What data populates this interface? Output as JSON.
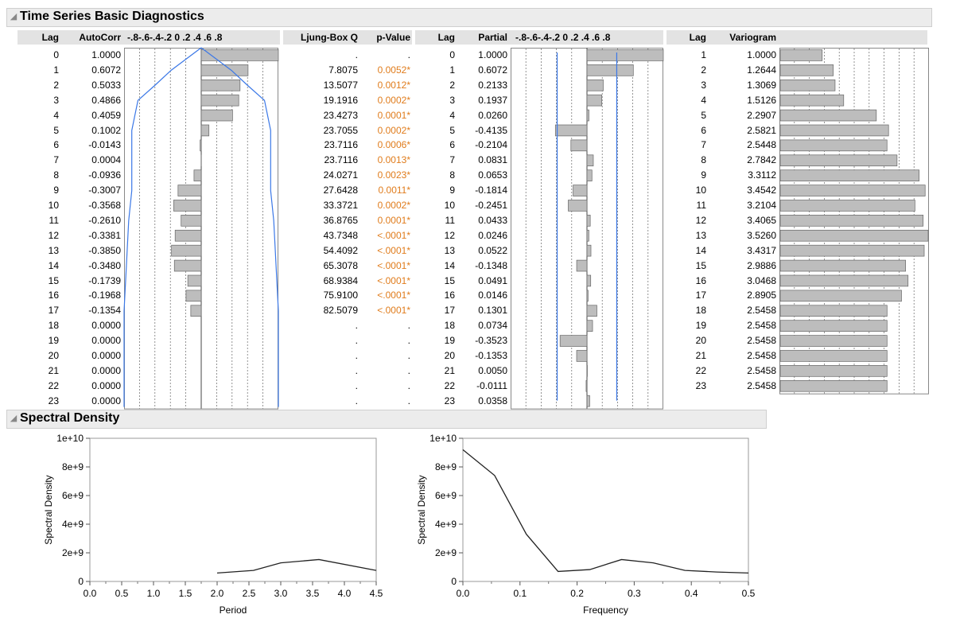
{
  "diagnostics": {
    "title": "Time Series Basic Diagnostics",
    "headers": {
      "lag": "Lag",
      "autocorr": "AutoCorr",
      "scale": "-.8-.6-.4-.2 0 .2 .4 .6 .8",
      "ljung": "Ljung-Box Q",
      "pvalue": "p-Value",
      "lag2": "Lag",
      "partial": "Partial",
      "lag3": "Lag",
      "variogram": "Variogram"
    },
    "lags": [
      "0",
      "1",
      "2",
      "3",
      "4",
      "5",
      "6",
      "7",
      "8",
      "9",
      "10",
      "11",
      "12",
      "13",
      "14",
      "15",
      "16",
      "17",
      "18",
      "19",
      "20",
      "21",
      "22",
      "23"
    ],
    "autocorr": [
      "1.0000",
      "0.6072",
      "0.5033",
      "0.4866",
      "0.4059",
      "0.1002",
      "-0.0143",
      "0.0004",
      "-0.0936",
      "-0.3007",
      "-0.3568",
      "-0.2610",
      "-0.3381",
      "-0.3850",
      "-0.3480",
      "-0.1739",
      "-0.1968",
      "-0.1354",
      "0.0000",
      "0.0000",
      "0.0000",
      "0.0000",
      "0.0000",
      "0.0000"
    ],
    "ljung_q": [
      ".",
      "7.8075",
      "13.5077",
      "19.1916",
      "23.4273",
      "23.7055",
      "23.7116",
      "23.7116",
      "24.0271",
      "27.6428",
      "33.3721",
      "36.8765",
      "43.7348",
      "54.4092",
      "65.3078",
      "68.9384",
      "75.9100",
      "82.5079",
      ".",
      ".",
      ".",
      ".",
      ".",
      "."
    ],
    "p_values": [
      ".",
      "0.0052*",
      "0.0012*",
      "0.0002*",
      "0.0001*",
      "0.0002*",
      "0.0006*",
      "0.0013*",
      "0.0023*",
      "0.0011*",
      "0.0002*",
      "0.0001*",
      "<.0001*",
      "<.0001*",
      "<.0001*",
      "<.0001*",
      "<.0001*",
      "<.0001*",
      ".",
      ".",
      ".",
      ".",
      ".",
      "."
    ],
    "partial": [
      "1.0000",
      "0.6072",
      "0.2133",
      "0.1937",
      "0.0260",
      "-0.4135",
      "-0.2104",
      "0.0831",
      "0.0653",
      "-0.1814",
      "-0.2451",
      "0.0433",
      "0.0246",
      "0.0522",
      "-0.1348",
      "0.0491",
      "0.0146",
      "0.1301",
      "0.0734",
      "-0.3523",
      "-0.1353",
      "0.0050",
      "-0.0111",
      "0.0358"
    ],
    "var_lags": [
      "1",
      "2",
      "3",
      "4",
      "5",
      "6",
      "7",
      "8",
      "9",
      "10",
      "11",
      "12",
      "13",
      "14",
      "15",
      "16",
      "17",
      "18",
      "19",
      "20",
      "21",
      "22",
      "23"
    ],
    "variogram": [
      "1.0000",
      "1.2644",
      "1.3069",
      "1.5126",
      "2.2907",
      "2.5821",
      "2.5448",
      "2.7842",
      "3.3112",
      "3.4542",
      "3.2104",
      "3.4065",
      "3.5260",
      "3.4317",
      "2.9886",
      "3.0468",
      "2.8905",
      "2.5458",
      "2.5458",
      "2.5458",
      "2.5458",
      "2.5458",
      "2.5458"
    ],
    "acf_limits": [
      0,
      0.39,
      0.6,
      0.82,
      0.86,
      0.9,
      0.9,
      0.9,
      0.9,
      0.9,
      0.92,
      0.94,
      0.95,
      0.96,
      0.97,
      0.98,
      0.99,
      1.0,
      1.0,
      1.0,
      1.0,
      1.0,
      1.0,
      1.0
    ],
    "pacf_limit": 0.39,
    "colors": {
      "bar": "#bdbdbd",
      "limit": "#3b78e7",
      "significant": "#e07c1c"
    }
  },
  "spectral": {
    "title": "Spectral Density"
  },
  "chart_data": [
    {
      "type": "line",
      "title": "",
      "xlabel": "Period",
      "ylabel": "Spectral Density",
      "xlim": [
        0,
        4.5
      ],
      "ylim": [
        0,
        10000000000
      ],
      "xticks": [
        "0.0",
        "0.5",
        "1.0",
        "1.5",
        "2.0",
        "2.5",
        "3.0",
        "3.5",
        "4.0",
        "4.5"
      ],
      "yticks": [
        "0",
        "2e+9",
        "4e+9",
        "6e+9",
        "8e+9",
        "1e+10"
      ],
      "x": [
        2.0,
        2.571,
        3.0,
        3.6,
        4.5
      ],
      "y": [
        590000000,
        770000000,
        1300000000,
        1530000000,
        770000000
      ]
    },
    {
      "type": "line",
      "title": "",
      "xlabel": "Frequency",
      "ylabel": "Spectral Density",
      "xlim": [
        0,
        0.5
      ],
      "ylim": [
        0,
        10000000000
      ],
      "xticks": [
        "0.0",
        "0.1",
        "0.2",
        "0.3",
        "0.4",
        "0.5"
      ],
      "yticks": [
        "0",
        "2e+9",
        "4e+9",
        "6e+9",
        "8e+9",
        "1e+10"
      ],
      "x": [
        0.0,
        0.0556,
        0.1111,
        0.1667,
        0.2222,
        0.2778,
        0.3333,
        0.3889,
        0.4444,
        0.5
      ],
      "y": [
        9200000000,
        7400000000,
        3300000000,
        700000000,
        830000000,
        1530000000,
        1300000000,
        770000000,
        660000000,
        590000000
      ]
    }
  ]
}
